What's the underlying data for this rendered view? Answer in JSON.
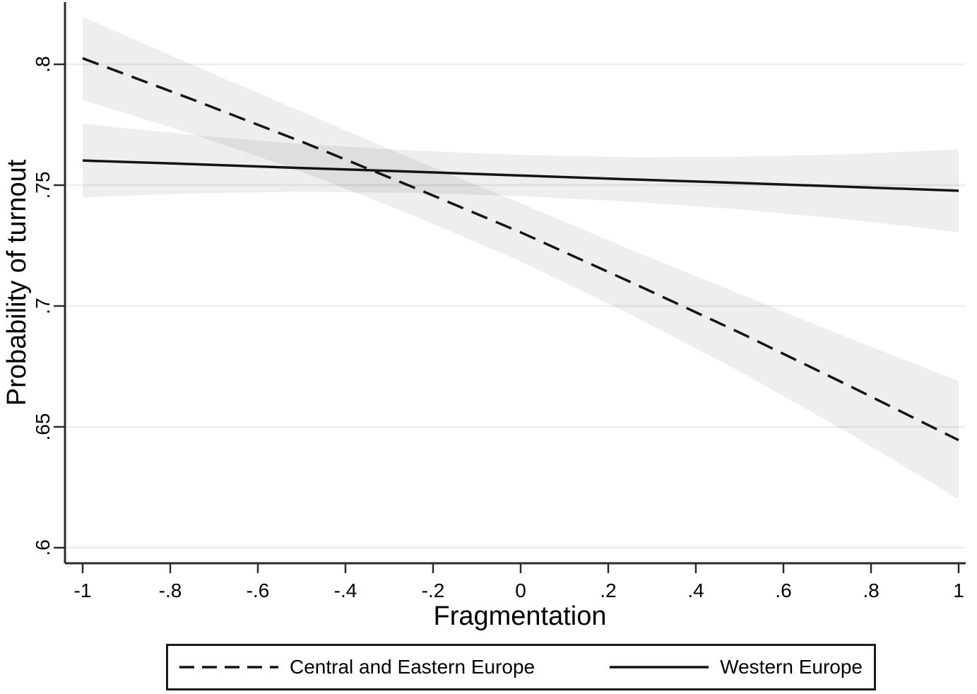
{
  "figure": {
    "background_color": "#ffffff",
    "axis_color": "#2b2b2b",
    "grid_color": "#e8eff2",
    "line_color": "#141414",
    "ci_band_color": "rgba(0,0,0,0.068)"
  },
  "chart_data": {
    "type": "line",
    "title": "",
    "xlabel": "Fragmentation",
    "ylabel": "Probability of turnout",
    "xlim": [
      -1,
      1
    ],
    "ylim": [
      0.593,
      0.826
    ],
    "grid": true,
    "legend_position": "bottom",
    "x_ticks": {
      "values": [
        -1,
        -0.8,
        -0.6,
        -0.4,
        -0.2,
        0,
        0.2,
        0.4,
        0.6,
        0.8,
        1
      ],
      "labels": [
        "-1",
        "-.8",
        "-.6",
        "-.4",
        "-.2",
        "0",
        ".2",
        ".4",
        ".6",
        ".8",
        "1"
      ]
    },
    "y_ticks": {
      "values": [
        0.6,
        0.65,
        0.7,
        0.75,
        0.8
      ],
      "labels": [
        ".6",
        ".65",
        ".7",
        ".75",
        ".8"
      ]
    },
    "series": [
      {
        "name": "Central and Eastern Europe",
        "line_style": "dashed",
        "has_ci_band": true,
        "x": [
          -1,
          -0.75,
          -0.5,
          -0.25,
          0,
          0.25,
          0.5,
          0.75,
          1
        ],
        "y": [
          0.8025,
          0.7855,
          0.768,
          0.7495,
          0.7305,
          0.71,
          0.689,
          0.667,
          0.6445
        ],
        "ci_upper": [
          0.8197,
          0.7998,
          0.7804,
          0.7611,
          0.7425,
          0.7234,
          0.705,
          0.6867,
          0.6689
        ],
        "ci_lower": [
          0.7853,
          0.7712,
          0.7556,
          0.7379,
          0.7185,
          0.6966,
          0.673,
          0.6473,
          0.6201
        ]
      },
      {
        "name": "Western Europe",
        "line_style": "solid",
        "has_ci_band": true,
        "x": [
          -1,
          -0.75,
          -0.5,
          -0.25,
          0,
          0.25,
          0.5,
          0.75,
          1
        ],
        "y": [
          0.7602,
          0.7587,
          0.7571,
          0.7556,
          0.754,
          0.7524,
          0.7509,
          0.7493,
          0.7477
        ],
        "ci_upper": [
          0.7754,
          0.7708,
          0.767,
          0.7644,
          0.7625,
          0.7616,
          0.7618,
          0.7628,
          0.7648
        ],
        "ci_lower": [
          0.745,
          0.7466,
          0.7472,
          0.7468,
          0.7455,
          0.7432,
          0.74,
          0.7358,
          0.7306
        ]
      }
    ]
  }
}
